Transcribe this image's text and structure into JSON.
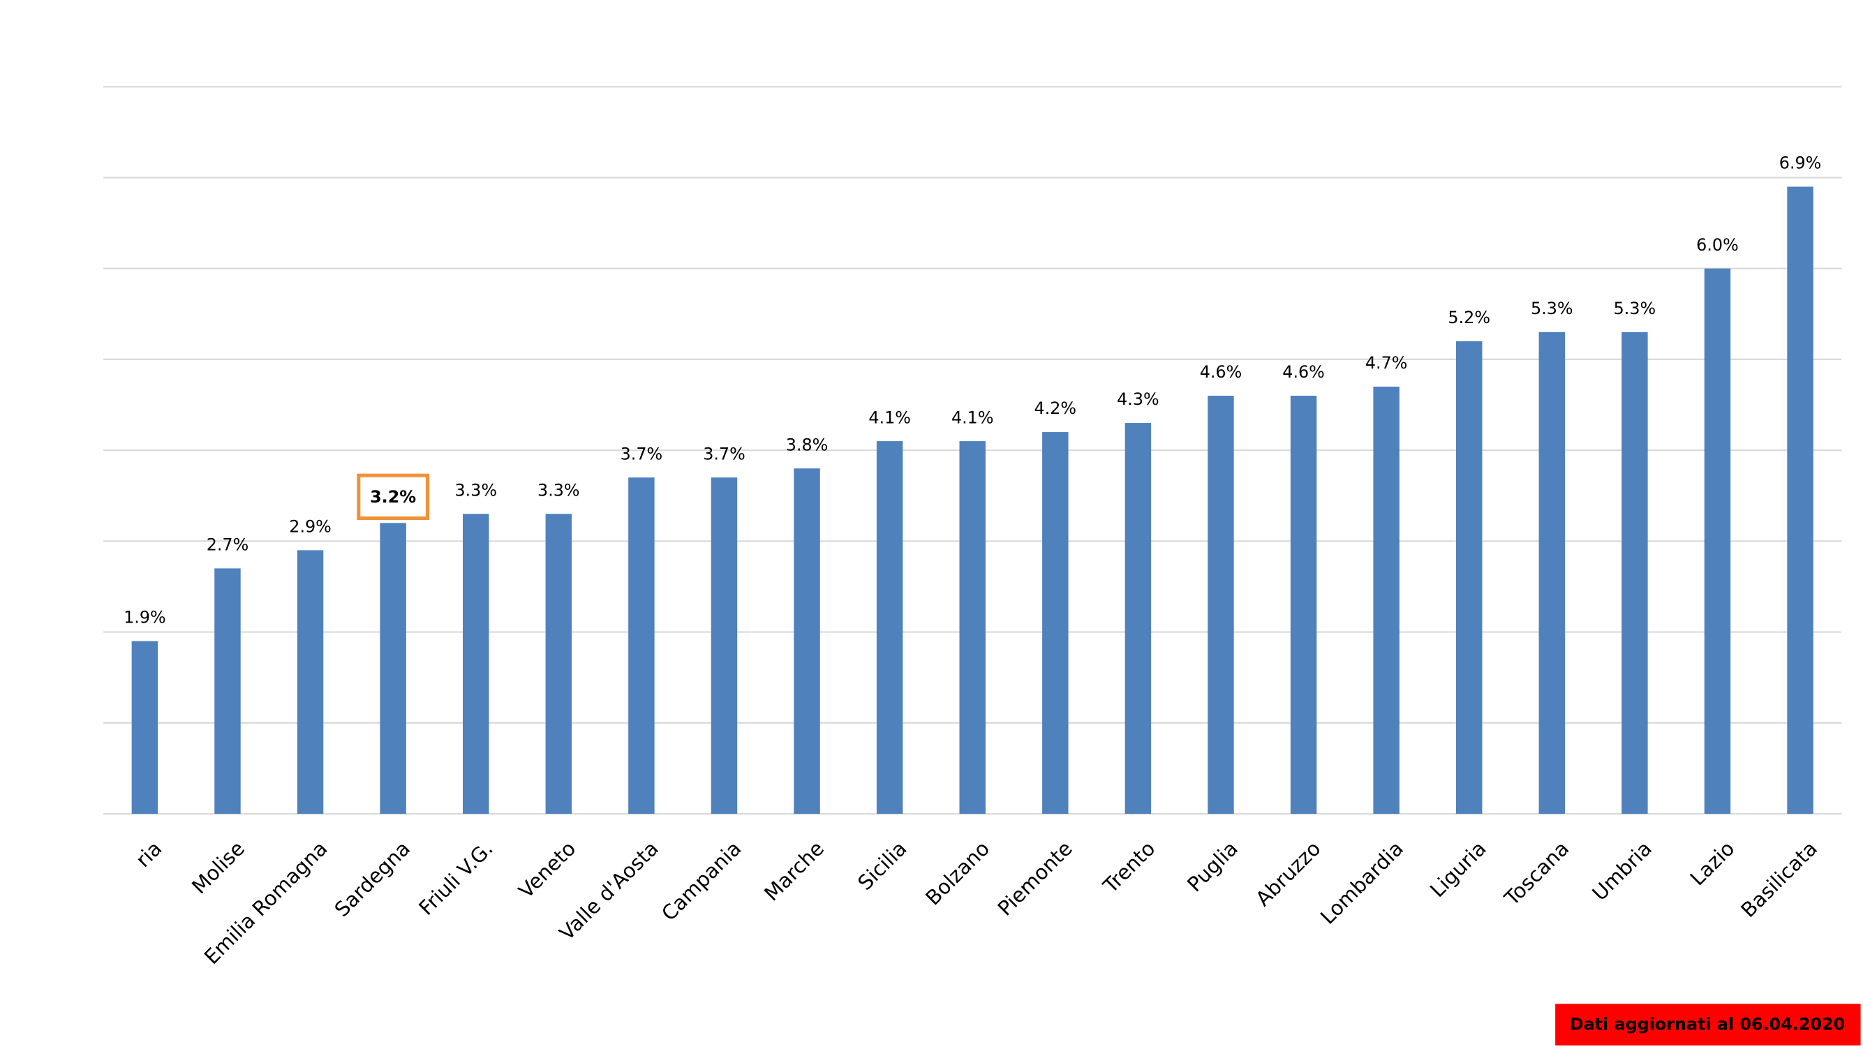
{
  "chart_data": {
    "type": "bar",
    "categories": [
      "ria",
      "Molise",
      "Emilia Romagna",
      "Sardegna",
      "Friuli V.G.",
      "Veneto",
      "Valle d'Aosta",
      "Campania",
      "Marche",
      "Sicilia",
      "Bolzano",
      "Piemonte",
      "Trento",
      "Puglia",
      "Abruzzo",
      "Lombardia",
      "Liguria",
      "Toscana",
      "Umbria",
      "Lazio",
      "Basilicata"
    ],
    "values": [
      1.9,
      2.7,
      2.9,
      3.2,
      3.3,
      3.3,
      3.7,
      3.7,
      3.8,
      4.1,
      4.1,
      4.2,
      4.3,
      4.6,
      4.6,
      4.7,
      5.2,
      5.3,
      5.3,
      6.0,
      6.9
    ],
    "value_labels": [
      "1.9%",
      "2.7%",
      "2.9%",
      "3.2%",
      "3.3%",
      "3.3%",
      "3.7%",
      "3.7%",
      "3.8%",
      "4.1%",
      "4.1%",
      "4.2%",
      "4.3%",
      "4.6%",
      "4.6%",
      "4.7%",
      "5.2%",
      "5.3%",
      "5.3%",
      "6.0%",
      "6.9%"
    ],
    "color": "#4f81bd",
    "ylim": [
      0,
      8
    ],
    "yticks": [
      0,
      1,
      2,
      3,
      4,
      5,
      6,
      7,
      8
    ],
    "grid": true,
    "highlight": {
      "index": 3,
      "color": "#f0923c"
    },
    "note": "Dati aggiornati al 06.04.2020",
    "note_color": "#ff0000"
  }
}
